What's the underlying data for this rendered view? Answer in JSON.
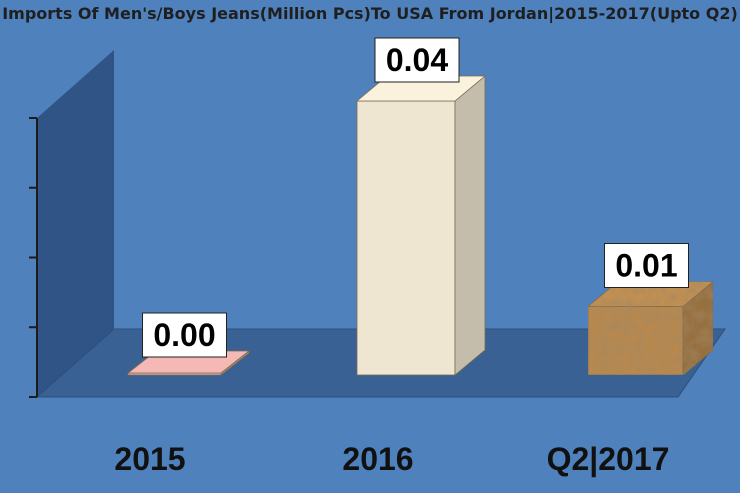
{
  "chart_data": {
    "type": "bar",
    "title": "Imports Of Men's/Boys Jeans(Million Pcs)To USA From Jordan|2015-2017(Upto Q2)",
    "categories": [
      "2015",
      "2016",
      "Q2|2017"
    ],
    "values": [
      0.0,
      0.04,
      0.01
    ],
    "data_labels": [
      "0.00",
      "0.04",
      "0.01"
    ],
    "ylim": [
      0,
      0.04
    ],
    "three_d": true,
    "grid": false,
    "legend": "none"
  },
  "colors": {
    "background": "#4f81bd",
    "wall": "#2f5485",
    "floor": "#3a6194",
    "bar_2015": "#e8b0ac",
    "bar_2016": "#efe6d2",
    "bar_2017": "#b8894f"
  }
}
